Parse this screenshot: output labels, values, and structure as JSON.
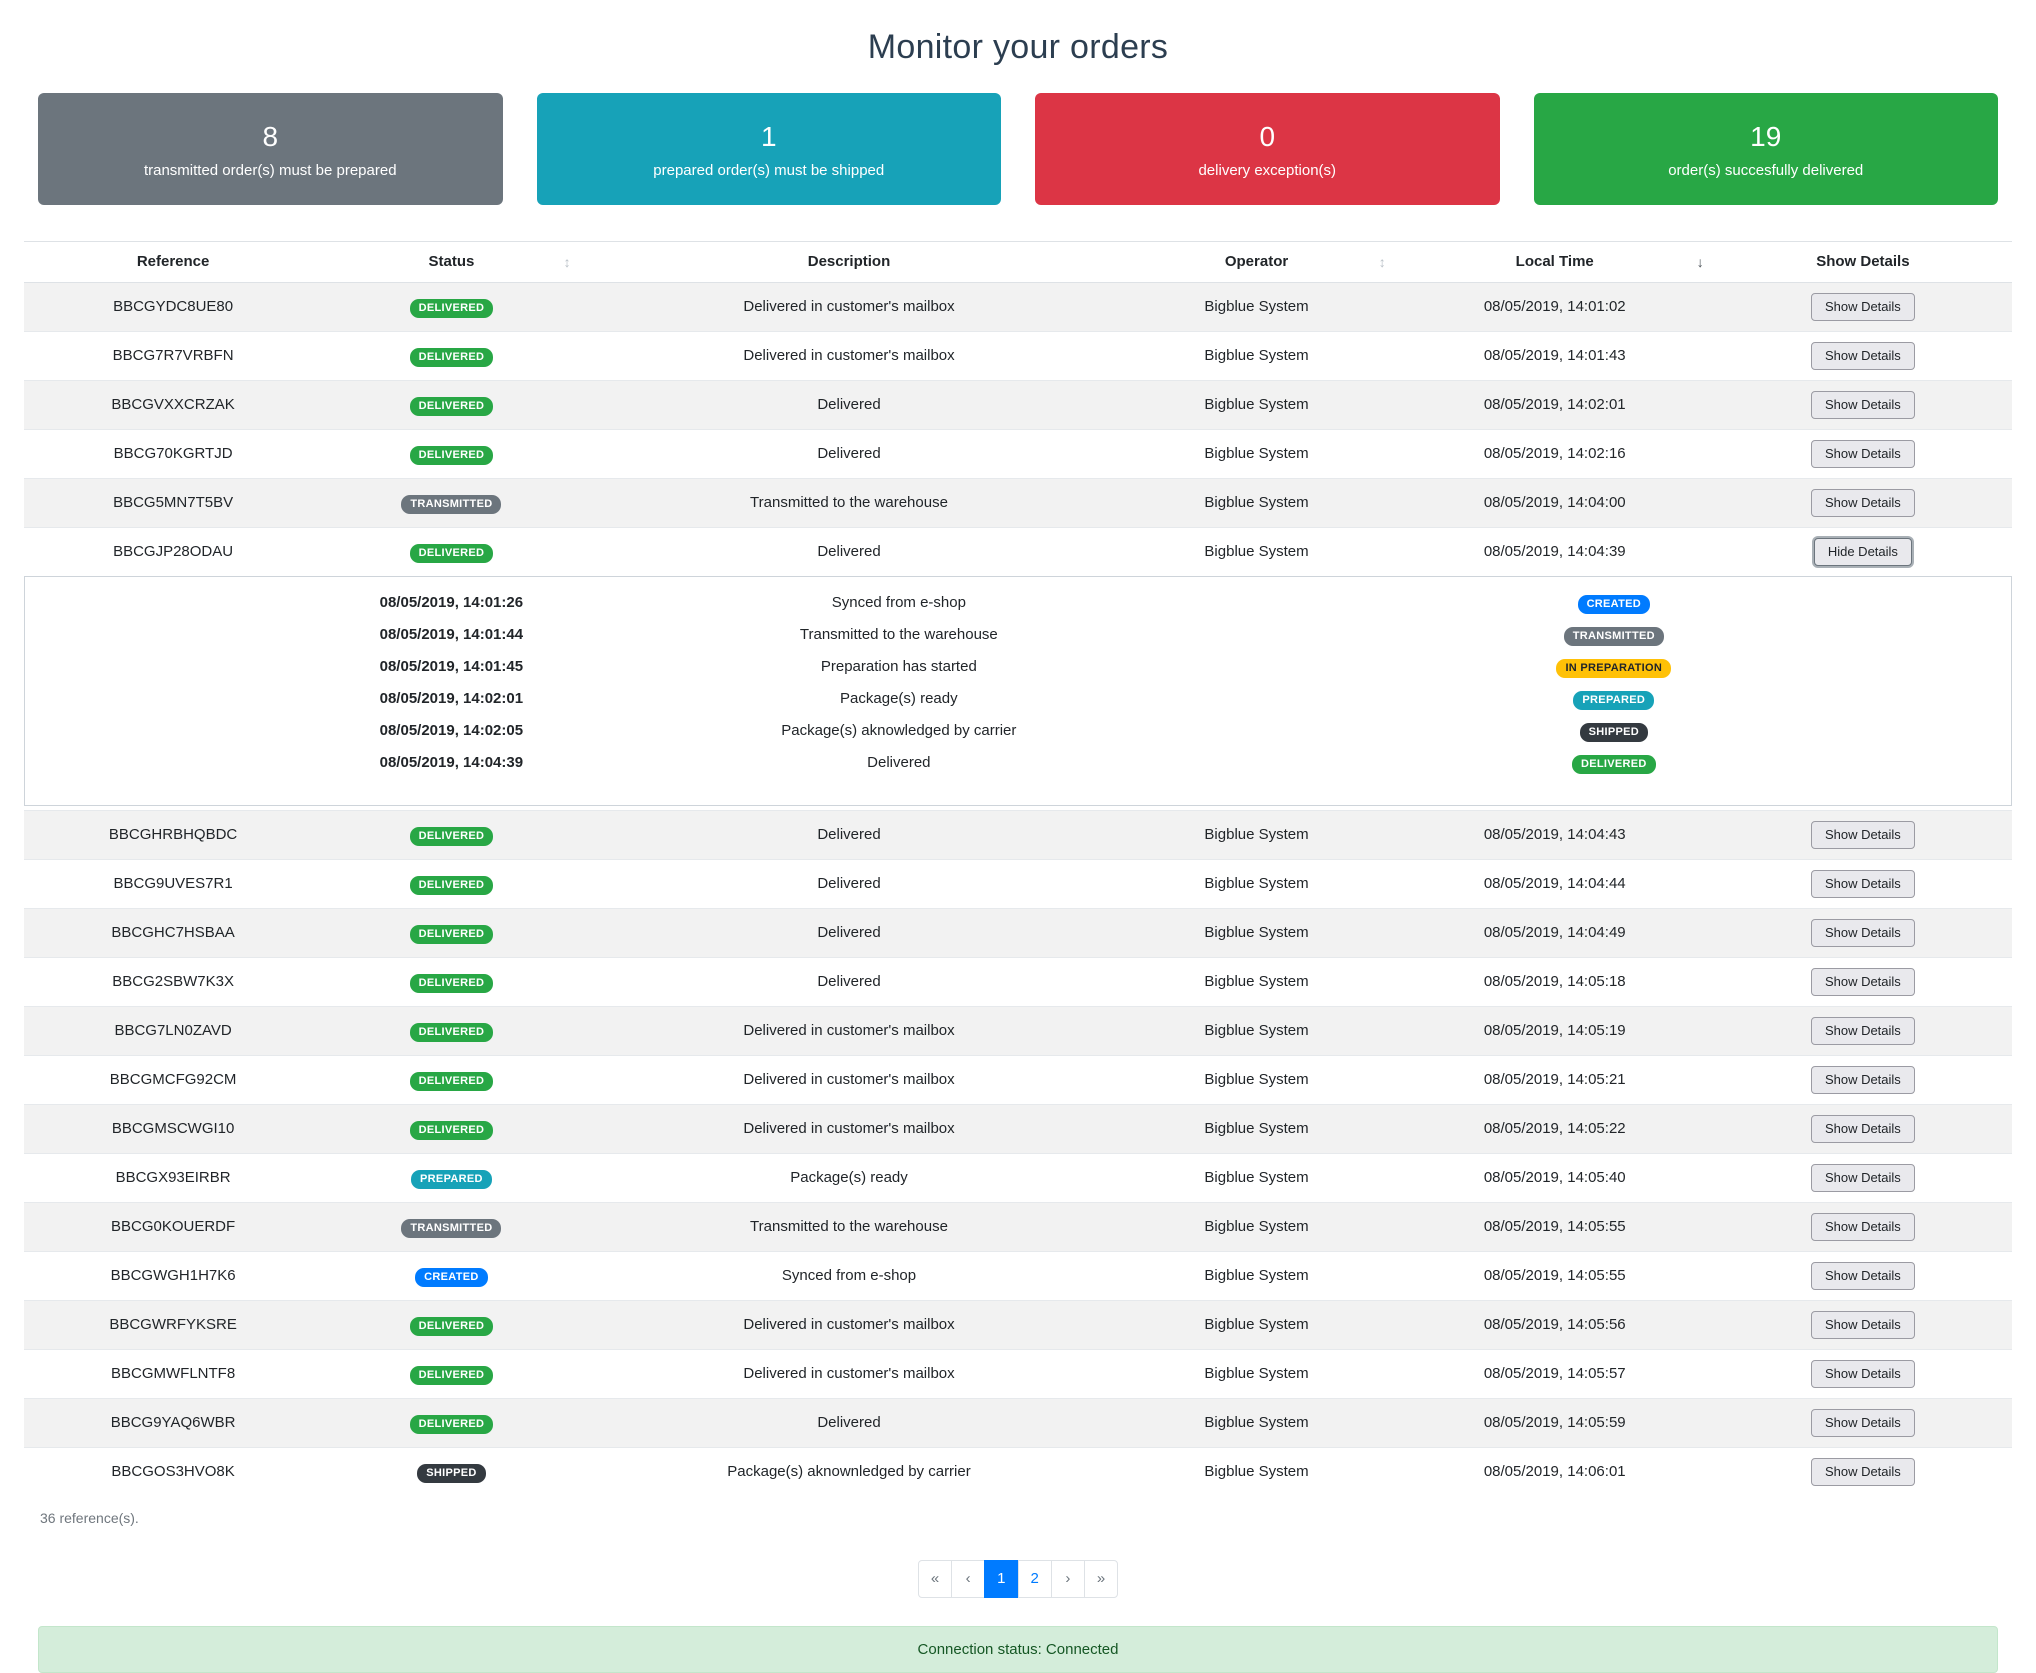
{
  "page": {
    "title": "Monitor your orders"
  },
  "summary_cards": [
    {
      "value": "8",
      "label": "transmitted order(s) must be prepared",
      "color": "#6c757d"
    },
    {
      "value": "1",
      "label": "prepared order(s) must be shipped",
      "color": "#17a2b8"
    },
    {
      "value": "0",
      "label": "delivery exception(s)",
      "color": "#dc3545"
    },
    {
      "value": "19",
      "label": "order(s) succesfully delivered",
      "color": "#28a745"
    }
  ],
  "badge_colors": {
    "DELIVERED": {
      "bg": "#28a745",
      "fg": "#ffffff"
    },
    "TRANSMITTED": {
      "bg": "#6c757d",
      "fg": "#ffffff"
    },
    "PREPARED": {
      "bg": "#17a2b8",
      "fg": "#ffffff"
    },
    "CREATED": {
      "bg": "#007bff",
      "fg": "#ffffff"
    },
    "IN PREPARATION": {
      "bg": "#ffc107",
      "fg": "#212529"
    },
    "SHIPPED": {
      "bg": "#343a40",
      "fg": "#ffffff"
    }
  },
  "table": {
    "headers": [
      {
        "label": "Reference"
      },
      {
        "label": "Status",
        "icon": "↕"
      },
      {
        "label": "Description"
      },
      {
        "label": "Operator",
        "icon": "↕"
      },
      {
        "label": "Local Time",
        "icon": "↓",
        "icon_active": true
      },
      {
        "label": "Show Details"
      }
    ],
    "show_details_label": "Show Details",
    "hide_details_label": "Hide Details",
    "rows": [
      {
        "reference": "BBCGYDC8UE80",
        "status": "DELIVERED",
        "description": "Delivered in customer's mailbox",
        "operator": "Bigblue System",
        "time": "08/05/2019, 14:01:02"
      },
      {
        "reference": "BBCG7R7VRBFN",
        "status": "DELIVERED",
        "description": "Delivered in customer's mailbox",
        "operator": "Bigblue System",
        "time": "08/05/2019, 14:01:43"
      },
      {
        "reference": "BBCGVXXCRZAK",
        "status": "DELIVERED",
        "description": "Delivered",
        "operator": "Bigblue System",
        "time": "08/05/2019, 14:02:01"
      },
      {
        "reference": "BBCG70KGRTJD",
        "status": "DELIVERED",
        "description": "Delivered",
        "operator": "Bigblue System",
        "time": "08/05/2019, 14:02:16"
      },
      {
        "reference": "BBCG5MN7T5BV",
        "status": "TRANSMITTED",
        "description": "Transmitted to the warehouse",
        "operator": "Bigblue System",
        "time": "08/05/2019, 14:04:00"
      },
      {
        "reference": "BBCGJP28ODAU",
        "status": "DELIVERED",
        "description": "Delivered",
        "operator": "Bigblue System",
        "time": "08/05/2019, 14:04:39",
        "expanded": true
      },
      {
        "reference": "BBCGHRBHQBDC",
        "status": "DELIVERED",
        "description": "Delivered",
        "operator": "Bigblue System",
        "time": "08/05/2019, 14:04:43"
      },
      {
        "reference": "BBCG9UVES7R1",
        "status": "DELIVERED",
        "description": "Delivered",
        "operator": "Bigblue System",
        "time": "08/05/2019, 14:04:44"
      },
      {
        "reference": "BBCGHC7HSBAA",
        "status": "DELIVERED",
        "description": "Delivered",
        "operator": "Bigblue System",
        "time": "08/05/2019, 14:04:49"
      },
      {
        "reference": "BBCG2SBW7K3X",
        "status": "DELIVERED",
        "description": "Delivered",
        "operator": "Bigblue System",
        "time": "08/05/2019, 14:05:18"
      },
      {
        "reference": "BBCG7LN0ZAVD",
        "status": "DELIVERED",
        "description": "Delivered in customer's mailbox",
        "operator": "Bigblue System",
        "time": "08/05/2019, 14:05:19"
      },
      {
        "reference": "BBCGMCFG92CM",
        "status": "DELIVERED",
        "description": "Delivered in customer's mailbox",
        "operator": "Bigblue System",
        "time": "08/05/2019, 14:05:21"
      },
      {
        "reference": "BBCGMSCWGI10",
        "status": "DELIVERED",
        "description": "Delivered in customer's mailbox",
        "operator": "Bigblue System",
        "time": "08/05/2019, 14:05:22"
      },
      {
        "reference": "BBCGX93EIRBR",
        "status": "PREPARED",
        "description": "Package(s) ready",
        "operator": "Bigblue System",
        "time": "08/05/2019, 14:05:40"
      },
      {
        "reference": "BBCG0KOUERDF",
        "status": "TRANSMITTED",
        "description": "Transmitted to the warehouse",
        "operator": "Bigblue System",
        "time": "08/05/2019, 14:05:55"
      },
      {
        "reference": "BBCGWGH1H7K6",
        "status": "CREATED",
        "description": "Synced from e-shop",
        "operator": "Bigblue System",
        "time": "08/05/2019, 14:05:55"
      },
      {
        "reference": "BBCGWRFYKSRE",
        "status": "DELIVERED",
        "description": "Delivered in customer's mailbox",
        "operator": "Bigblue System",
        "time": "08/05/2019, 14:05:56"
      },
      {
        "reference": "BBCGMWFLNTF8",
        "status": "DELIVERED",
        "description": "Delivered in customer's mailbox",
        "operator": "Bigblue System",
        "time": "08/05/2019, 14:05:57"
      },
      {
        "reference": "BBCG9YAQ6WBR",
        "status": "DELIVERED",
        "description": "Delivered",
        "operator": "Bigblue System",
        "time": "08/05/2019, 14:05:59"
      },
      {
        "reference": "BBCGOS3HVO8K",
        "status": "SHIPPED",
        "description": "Package(s) aknownledged by carrier",
        "operator": "Bigblue System",
        "time": "08/05/2019, 14:06:01"
      }
    ],
    "history": [
      {
        "time": "08/05/2019, 14:01:26",
        "description": "Synced from e-shop",
        "status": "CREATED"
      },
      {
        "time": "08/05/2019, 14:01:44",
        "description": "Transmitted to the warehouse",
        "status": "TRANSMITTED"
      },
      {
        "time": "08/05/2019, 14:01:45",
        "description": "Preparation has started",
        "status": "IN PREPARATION"
      },
      {
        "time": "08/05/2019, 14:02:01",
        "description": "Package(s) ready",
        "status": "PREPARED"
      },
      {
        "time": "08/05/2019, 14:02:05",
        "description": "Package(s) aknowledged by carrier",
        "status": "SHIPPED"
      },
      {
        "time": "08/05/2019, 14:04:39",
        "description": "Delivered",
        "status": "DELIVERED"
      }
    ]
  },
  "footer": {
    "count_text": "36 reference(s)."
  },
  "pagination": {
    "items": [
      {
        "label": "«",
        "name": "first"
      },
      {
        "label": "‹",
        "name": "prev"
      },
      {
        "label": "1",
        "name": "page-1",
        "type": "number",
        "active": true
      },
      {
        "label": "2",
        "name": "page-2",
        "type": "number"
      },
      {
        "label": "›",
        "name": "next"
      },
      {
        "label": "»",
        "name": "last"
      }
    ]
  },
  "status_bar": {
    "text": "Connection status: Connected"
  }
}
